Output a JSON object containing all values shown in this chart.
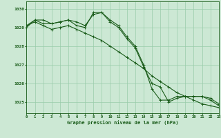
{
  "title": "Graphe pression niveau de la mer (hPa)",
  "bg_color": "#cce8d4",
  "grid_color": "#99ccaa",
  "line_color": "#1a5c1a",
  "marker_color": "#1a5c1a",
  "x_min": 0,
  "x_max": 23,
  "y_min": 1024.4,
  "y_max": 1030.4,
  "y_ticks": [
    1025,
    1026,
    1027,
    1028,
    1029,
    1030
  ],
  "x_ticks": [
    0,
    1,
    2,
    3,
    4,
    5,
    6,
    7,
    8,
    9,
    10,
    11,
    12,
    13,
    14,
    15,
    16,
    17,
    18,
    19,
    20,
    21,
    22,
    23
  ],
  "series1_x": [
    0,
    1,
    2,
    3,
    4,
    5,
    6,
    7,
    8,
    9,
    10,
    11,
    12,
    13,
    14,
    15,
    16,
    17,
    18,
    19,
    20,
    21,
    22,
    23
  ],
  "series1_y": [
    1029.1,
    1029.4,
    1029.4,
    1029.2,
    1029.3,
    1029.4,
    1029.3,
    1029.1,
    1029.7,
    1029.8,
    1029.4,
    1029.1,
    1028.5,
    1028.0,
    1027.0,
    1025.7,
    1025.1,
    1025.1,
    1025.3,
    1025.3,
    1025.3,
    1025.3,
    1025.2,
    1024.9
  ],
  "series2_x": [
    0,
    1,
    2,
    3,
    4,
    5,
    6,
    7,
    8,
    9,
    10,
    11,
    12,
    13,
    14,
    15,
    16,
    17,
    18,
    19,
    20,
    21,
    22,
    23
  ],
  "series2_y": [
    1029.0,
    1029.4,
    1029.2,
    1029.2,
    1029.3,
    1029.4,
    1029.1,
    1029.0,
    1029.8,
    1029.8,
    1029.3,
    1029.0,
    1028.4,
    1027.9,
    1026.9,
    1026.0,
    1025.8,
    1025.0,
    1025.2,
    1025.3,
    1025.3,
    1025.3,
    1025.1,
    1024.8
  ],
  "series3_x": [
    0,
    1,
    2,
    3,
    4,
    5,
    6,
    7,
    8,
    9,
    10,
    11,
    12,
    13,
    14,
    15,
    16,
    17,
    18,
    19,
    20,
    21,
    22,
    23
  ],
  "series3_y": [
    1029.1,
    1029.3,
    1029.1,
    1028.9,
    1029.0,
    1029.1,
    1028.9,
    1028.7,
    1028.5,
    1028.3,
    1028.0,
    1027.7,
    1027.4,
    1027.1,
    1026.8,
    1026.4,
    1026.1,
    1025.8,
    1025.5,
    1025.3,
    1025.1,
    1024.9,
    1024.8,
    1024.7
  ]
}
